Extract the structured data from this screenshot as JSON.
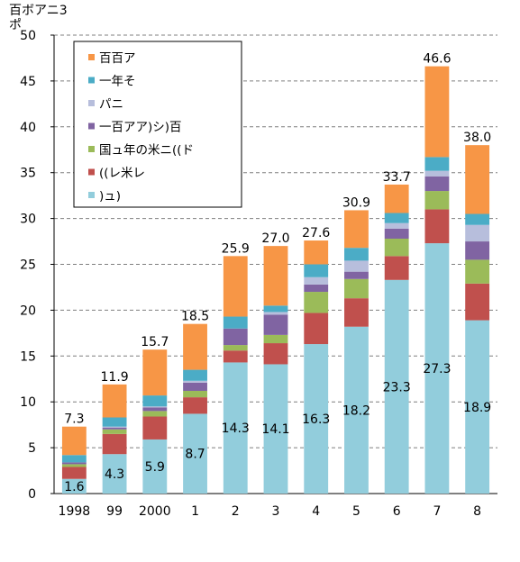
{
  "chart_data": {
    "type": "bar",
    "stacked": true,
    "ylabel": "百ボアニ3\nポ",
    "ylim": [
      0,
      50
    ],
    "yticks": [
      0,
      5,
      10,
      15,
      20,
      25,
      30,
      35,
      40,
      45,
      50
    ],
    "grid": true,
    "legend_position": "top-left",
    "categories": [
      "1998",
      "99",
      "2000",
      "1",
      "2",
      "3",
      "4",
      "5",
      "6",
      "7",
      "8"
    ],
    "totals": [
      7.3,
      11.9,
      15.7,
      18.5,
      25.9,
      27.0,
      27.6,
      30.9,
      33.7,
      46.6,
      38.0
    ],
    "series": [
      {
        "name": ")ュ)",
        "color": "#92cddc",
        "values": [
          1.6,
          4.3,
          5.9,
          8.7,
          14.3,
          14.1,
          16.3,
          18.2,
          23.3,
          27.3,
          18.9
        ],
        "labels_shown": true
      },
      {
        "name": "((レ米レ",
        "color": "#c0504d",
        "values": [
          1.3,
          2.2,
          2.5,
          1.8,
          1.3,
          2.3,
          3.4,
          3.1,
          2.6,
          3.7,
          4.0
        ]
      },
      {
        "name": "国ュ年の米ニ((ド",
        "color": "#9bbb59",
        "values": [
          0.3,
          0.5,
          0.6,
          0.7,
          0.6,
          0.9,
          2.3,
          2.1,
          1.9,
          2.0,
          2.6
        ]
      },
      {
        "name": "一百アア)シ)百",
        "color": "#8064a2",
        "values": [
          0.2,
          0.2,
          0.4,
          0.9,
          1.8,
          2.2,
          0.8,
          0.8,
          1.1,
          1.6,
          2.0
        ]
      },
      {
        "name": "パニ",
        "color": "#b7bedc",
        "values": [
          0.0,
          0.1,
          0.1,
          0.2,
          0.0,
          0.3,
          0.8,
          1.2,
          0.6,
          0.6,
          1.8
        ]
      },
      {
        "name": "一年そ",
        "color": "#4bacc6",
        "values": [
          0.8,
          1.0,
          1.2,
          1.2,
          1.3,
          0.7,
          1.4,
          1.4,
          1.1,
          1.5,
          1.2
        ]
      },
      {
        "name": "百百ア",
        "color": "#f79646",
        "values": [
          3.1,
          3.6,
          5.0,
          5.0,
          6.6,
          6.5,
          2.6,
          4.1,
          3.1,
          9.9,
          7.5
        ]
      }
    ],
    "legend_order": [
      "百百ア",
      "一年そ",
      "パニ",
      "一百アア)シ)百",
      "国ュ年の米ニ((ド",
      "((レ米レ",
      ")ュ)"
    ]
  }
}
